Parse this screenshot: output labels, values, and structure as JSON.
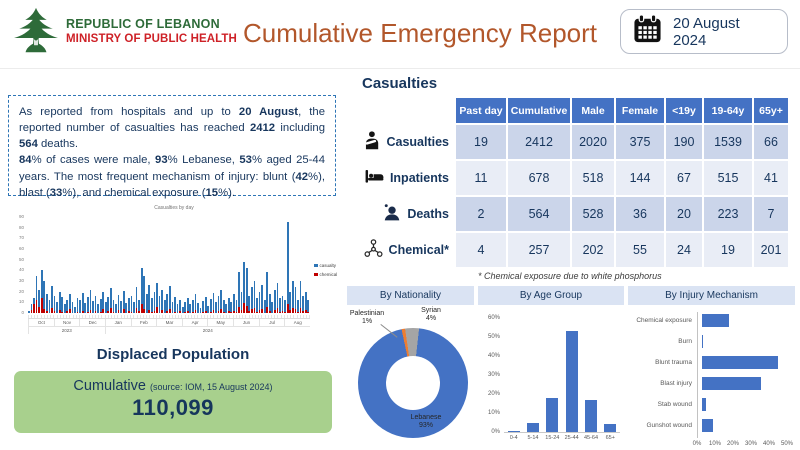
{
  "header": {
    "org_line1": "REPUBLIC OF LEBANON",
    "org_line2": "MINISTRY OF PUBLIC HEALTH",
    "title": "Cumulative Emergency Report",
    "date_label": "20 August 2024",
    "icons": {
      "logo": "cedar-tree-icon",
      "date": "calendar-icon"
    }
  },
  "colors": {
    "logo_green": "#2E6B39",
    "ministry_red": "#CE2127",
    "title_brown": "#B2572B",
    "navy_text": "#17365D",
    "table_header_blue": "#4472C4",
    "row_dark": "#CBD5EA",
    "row_light": "#E9EDF6",
    "bar_blue": "#4472C4",
    "daily_blue": "#2E75B6",
    "chemical_red": "#C00000",
    "green_box": "#A8D08D",
    "panel_header_bg": "#DAE3F3"
  },
  "summary": {
    "segments": [
      {
        "t": "As reported from hospitals and up to "
      },
      {
        "t": "20 August",
        "b": 1
      },
      {
        "t": ", the reported number of casualties has reached "
      },
      {
        "t": "2412",
        "b": 1
      },
      {
        "t": " including "
      },
      {
        "t": "564",
        "b": 1
      },
      {
        "t": " deaths.",
        "br": 1
      },
      {
        "t": "84",
        "b": 1
      },
      {
        "t": "% of cases were male, "
      },
      {
        "t": "93",
        "b": 1
      },
      {
        "t": "% Lebanese, "
      },
      {
        "t": "53",
        "b": 1
      },
      {
        "t": "% aged 25-44 years. The most frequent mechanism of injury: blunt ("
      },
      {
        "t": "42",
        "b": 1
      },
      {
        "t": "%), blast ("
      },
      {
        "t": "33",
        "b": 1
      },
      {
        "t": "%), and chemical exposure ("
      },
      {
        "t": "15",
        "b": 1
      },
      {
        "t": "%)."
      }
    ]
  },
  "casualties_section": {
    "title": "Casualties",
    "columns": [
      "Past day",
      "Cumulative",
      "Male",
      "Female",
      "<19y",
      "19-64y",
      "65y+"
    ],
    "rows": [
      {
        "icon": "injured-person-icon",
        "label": "Casualties",
        "values": [
          "19",
          "2412",
          "2020",
          "375",
          "190",
          "1539",
          "66"
        ]
      },
      {
        "icon": "hospital-bed-icon",
        "label": "Inpatients",
        "values": [
          "11",
          "678",
          "518",
          "144",
          "67",
          "515",
          "41"
        ]
      },
      {
        "icon": "deceased-person-icon",
        "label": "Deaths",
        "values": [
          "2",
          "564",
          "528",
          "36",
          "20",
          "223",
          "7"
        ]
      },
      {
        "icon": "chemical-icon",
        "label": "Chemical*",
        "values": [
          "4",
          "257",
          "202",
          "55",
          "24",
          "19",
          "201"
        ]
      }
    ],
    "footnote": "* Chemical exposure due to white phosphorus"
  },
  "displaced": {
    "title": "Displaced Population",
    "cumulative_label": "Cumulative",
    "source": "(source: IOM, 15 August 2024)",
    "value": "110,099"
  },
  "chart_data": [
    {
      "id": "daily",
      "type": "bar",
      "title": "Casualties by day",
      "stacked_overlay": true,
      "series": [
        {
          "name": "casualty",
          "color": "#2E75B6",
          "values": [
            2,
            8,
            14,
            35,
            22,
            40,
            30,
            18,
            12,
            25,
            16,
            10,
            20,
            15,
            8,
            12,
            18,
            10,
            6,
            14,
            12,
            19,
            9,
            15,
            22,
            11,
            16,
            8,
            13,
            20,
            10,
            15,
            23,
            12,
            8,
            17,
            11,
            21,
            9,
            14,
            16,
            10,
            24,
            12,
            42,
            35,
            18,
            26,
            14,
            20,
            28,
            16,
            22,
            12,
            18,
            25,
            10,
            15,
            8,
            12,
            6,
            10,
            14,
            8,
            12,
            18,
            9,
            5,
            11,
            15,
            7,
            13,
            19,
            10,
            16,
            22,
            12,
            8,
            14,
            10,
            18,
            12,
            38,
            20,
            48,
            42,
            16,
            24,
            30,
            14,
            20,
            26,
            12,
            38,
            18,
            10,
            22,
            28,
            14,
            16,
            12,
            85,
            20,
            30,
            24,
            12,
            30,
            16,
            20,
            12
          ]
        },
        {
          "name": "chemical",
          "color": "#C00000",
          "values": [
            0,
            3,
            8,
            12,
            6,
            14,
            4,
            2,
            0,
            5,
            2,
            0,
            3,
            1,
            0,
            2,
            4,
            0,
            0,
            1,
            0,
            2,
            0,
            1,
            3,
            0,
            2,
            0,
            1,
            4,
            0,
            2,
            5,
            1,
            0,
            3,
            0,
            4,
            0,
            2,
            1,
            0,
            5,
            2,
            8,
            4,
            0,
            3,
            1,
            2,
            6,
            0,
            3,
            0,
            2,
            4,
            0,
            1,
            0,
            2,
            0,
            1,
            2,
            0,
            1,
            3,
            0,
            0,
            1,
            2,
            0,
            1,
            3,
            0,
            2,
            4,
            1,
            0,
            2,
            1,
            2,
            1,
            6,
            3,
            9,
            7,
            2,
            4,
            5,
            1,
            3,
            4,
            0,
            6,
            2,
            0,
            3,
            5,
            1,
            2,
            1,
            8,
            3,
            5,
            4,
            1,
            5,
            2,
            3,
            1
          ]
        }
      ],
      "x_months": [
        "Oct",
        "Nov",
        "Dec",
        "Jan",
        "Feb",
        "Mar",
        "Apr",
        "May",
        "Jun",
        "Jul",
        "Aug"
      ],
      "x_years": [
        "2023",
        "2024"
      ],
      "ylim": [
        0,
        90
      ],
      "yticks": [
        0,
        10,
        20,
        30,
        40,
        50,
        60,
        70,
        80,
        90
      ],
      "legend_position": "right",
      "grid": false
    },
    {
      "id": "nationality",
      "type": "pie",
      "donut": true,
      "title": "By Nationality",
      "labels": [
        "Lebanese",
        "Syrian",
        "Palestinian"
      ],
      "values": [
        93,
        4,
        1
      ],
      "value_labels": [
        "93%",
        "4%",
        "1%"
      ],
      "colors": [
        "#4472C4",
        "#A5A5A5",
        "#ED7D31"
      ]
    },
    {
      "id": "age",
      "type": "bar",
      "title": "By Age Group",
      "categories": [
        "0-4",
        "5-14",
        "15-24",
        "25-44",
        "45-64",
        "65+"
      ],
      "values": [
        0.5,
        5,
        18,
        53,
        17,
        4
      ],
      "unit": "%",
      "ylim": [
        0,
        60
      ],
      "yticks": [
        "0%",
        "10%",
        "20%",
        "30%",
        "40%",
        "50%",
        "60%"
      ],
      "grid": false
    },
    {
      "id": "injury",
      "type": "bar",
      "orientation": "horizontal",
      "title": "By Injury Mechanism",
      "categories": [
        "Chemical exposure",
        "Burn",
        "Blunt trauma",
        "Blast injury",
        "Stab wound",
        "Gunshot wound"
      ],
      "values": [
        15,
        0.4,
        42,
        33,
        2,
        6
      ],
      "unit": "%",
      "xlim": [
        0,
        50
      ],
      "xticks": [
        "0%",
        "10%",
        "20%",
        "30%",
        "40%",
        "50%"
      ],
      "grid": false
    }
  ]
}
